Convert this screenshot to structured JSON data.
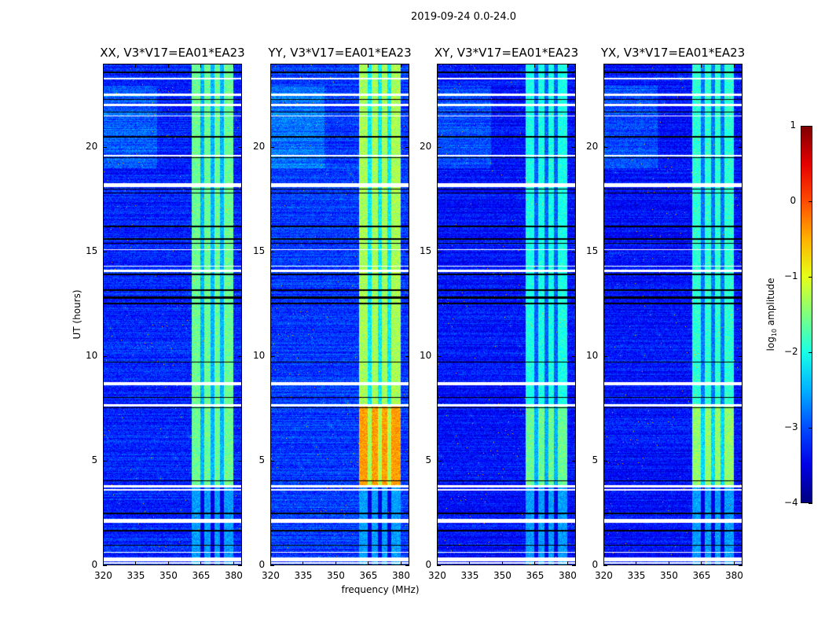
{
  "chart_data": {
    "type": "heatmap",
    "title": "2019-09-24 0.0-24.0",
    "xlabel": "frequency (MHz)",
    "ylabel": "UT (hours)",
    "xlim": [
      320,
      384
    ],
    "ylim": [
      0,
      24
    ],
    "xticks": [
      320,
      335,
      350,
      365,
      380
    ],
    "yticks": [
      0,
      5,
      10,
      15,
      20
    ],
    "colormap": "jet",
    "colorbar": {
      "label_prefix": "log",
      "label_sub": "10",
      "label_suffix": " amplitude",
      "range": [
        -4,
        1
      ],
      "ticks": [
        -4,
        -3,
        -2,
        -1,
        0,
        1
      ]
    },
    "panels": [
      {
        "title": "XX, V3*V17=EA01*EA23",
        "background_level": -3.2,
        "band_level": -1.6,
        "band_level_early": -1.6
      },
      {
        "title": "YY, V3*V17=EA01*EA23",
        "background_level": -3.1,
        "band_level": -1.3,
        "band_level_early": -0.4
      },
      {
        "title": "XY, V3*V17=EA01*EA23",
        "background_level": -3.3,
        "band_level": -2.0,
        "band_level_early": -1.6
      },
      {
        "title": "YX, V3*V17=EA01*EA23",
        "background_level": -3.3,
        "band_level": -1.9,
        "band_level_early": -1.4
      }
    ],
    "bright_band_mhz": [
      361,
      380.5
    ],
    "band_gaps_mhz": [
      366,
      370.5,
      375
    ],
    "band_start_hours": 3.8,
    "flagged_white_hours": [
      [
        0.05,
        0.1
      ],
      [
        0.15,
        0.35
      ],
      [
        0.55,
        0.62
      ],
      [
        2.0,
        2.2
      ],
      [
        3.55,
        3.62
      ],
      [
        3.68,
        3.8
      ],
      [
        7.6,
        7.68
      ],
      [
        8.6,
        8.75
      ],
      [
        14.05,
        14.15
      ],
      [
        14.3,
        14.35
      ],
      [
        15.1,
        15.15
      ],
      [
        18.1,
        18.3
      ],
      [
        19.6,
        19.65
      ],
      [
        21.5,
        21.55
      ],
      [
        22.0,
        22.1
      ],
      [
        22.5,
        22.6
      ],
      [
        23.3,
        23.35
      ]
    ],
    "flagged_black_hours": [
      [
        0.9,
        0.95
      ],
      [
        1.6,
        1.65
      ],
      [
        2.4,
        2.5
      ],
      [
        4.0,
        4.03
      ],
      [
        7.5,
        7.55
      ],
      [
        8.0,
        8.05
      ],
      [
        9.7,
        9.75
      ],
      [
        12.5,
        12.55
      ],
      [
        12.75,
        12.85
      ],
      [
        13.15,
        13.2
      ],
      [
        13.9,
        13.95
      ],
      [
        15.4,
        15.45
      ],
      [
        15.6,
        15.65
      ],
      [
        16.2,
        16.25
      ],
      [
        17.8,
        17.85
      ],
      [
        18.0,
        18.05
      ],
      [
        19.5,
        19.55
      ],
      [
        20.5,
        20.55
      ],
      [
        21.7,
        21.73
      ],
      [
        22.3,
        22.35
      ],
      [
        23.6,
        23.65
      ]
    ]
  }
}
